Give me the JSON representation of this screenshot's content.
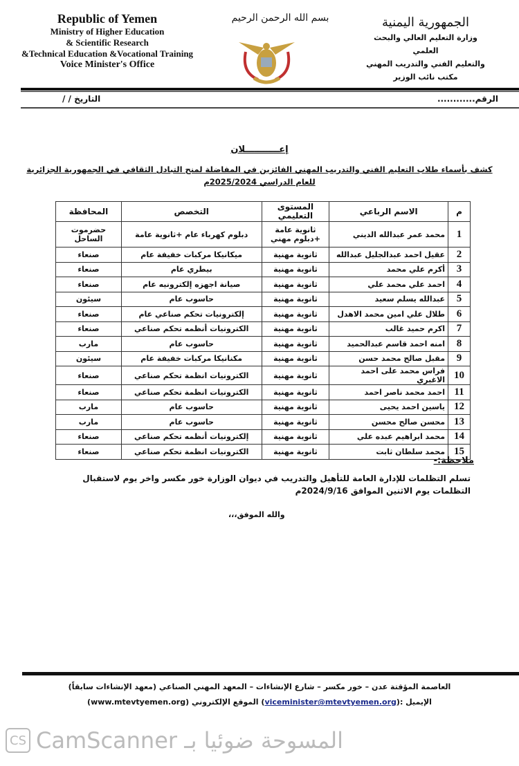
{
  "header": {
    "en": [
      "Republic of Yemen",
      "Ministry of Higher Education",
      "& Scientific Research",
      "&Technical Education &Vocational Training",
      "Voice Minister's Office"
    ],
    "ar": [
      "الجمهورية اليمنية",
      "وزارة التعليم العالي والبحث العلمي",
      "والتعليم الفني والتدريب المهني",
      "مكتب نائب الوزير"
    ],
    "basmala": "بسم الله الرحمن الرحيم",
    "number_label": "الرقم............",
    "date_label": "التاريخ   /   /"
  },
  "announcement": {
    "title": "إعـــــــــــلان",
    "subtitle": "كشف بأسماء طلاب التعليم الفني والتدريب المهني الفائزين في المفاضلة لمنح التبادل الثقافي في الجمهورية الجزائرية",
    "year": "للعام الدراسي 2025/2024م"
  },
  "table": {
    "headers": [
      "م",
      "الاسم الرباعي",
      "المستوى التعليمي",
      "التخصص",
      "المحافظة"
    ],
    "rows": [
      [
        "1",
        "محمد عمر عبدالله الديني",
        "ثانوية عامة +دبلوم مهني",
        "دبلوم كهرباء عام +ثانوية عامة",
        "حضرموت الساحل"
      ],
      [
        "2",
        "عقيل احمد عبدالجليل عبدالله",
        "ثانوية مهنية",
        "ميكانيكا مركبات خفيفة عام",
        "صنعاء"
      ],
      [
        "3",
        "أكرم علي محمد",
        "ثانوية مهنية",
        "بيطري عام",
        "صنعاء"
      ],
      [
        "4",
        "احمد علي محمد علي",
        "ثانوية مهنية",
        "صيانة اجهزه إلكترونيه عام",
        "صنعاء"
      ],
      [
        "5",
        "عبدالله يسلم سعيد",
        "ثانوية مهنية",
        "حاسوب عام",
        "سيئون"
      ],
      [
        "6",
        "طلال علي امين محمد الاهدل",
        "ثانوية مهنية",
        "إلكترونيات تحكم صناعي عام",
        "صنعاء"
      ],
      [
        "7",
        "اكرم حميد غالب",
        "ثانوية مهنية",
        "الكترونيات أنظمه تحكم صناعي",
        "صنعاء"
      ],
      [
        "8",
        "امنه احمد قاسم عبدالحميد",
        "ثانوية مهنية",
        "حاسوب عام",
        "مارب"
      ],
      [
        "9",
        "مقبل صالح محمد حسن",
        "ثانوية مهنية",
        "مكنانيكا مركبات خفيفة عام",
        "سيئون"
      ],
      [
        "10",
        "فراس محمد على احمد الاغبري",
        "ثانوية مهنية",
        "الكترونيات انظمة تحكم صناعي",
        "صنعاء"
      ],
      [
        "11",
        "احمد محمد ناصر احمد",
        "ثانوية مهنية",
        "الكترونيات انظمة تحكم صناعي",
        "صنعاء"
      ],
      [
        "12",
        "ياسين احمد يحيى",
        "ثانوية مهنية",
        "حاسوب عام",
        "مارب"
      ],
      [
        "13",
        "محسن صالح محسن",
        "ثانوية مهنية",
        "حاسوب عام",
        "مارب"
      ],
      [
        "14",
        "محمد ابراهيم عبده علي",
        "ثانوية مهنية",
        "إلكترونيات أنظمه تحكم صناعي",
        "صنعاء"
      ],
      [
        "15",
        "محمد سلطان ثابت",
        "ثانوية مهنية",
        "الكترونيات انظمة تحكم صناعي",
        "صنعاء"
      ]
    ]
  },
  "note": {
    "label": "ملاحظة:-",
    "line1": "تسلم التظلمات للإدارة العامة للتأهيل والتدريب في ديوان الوزارة خور مكسر واخر يوم لاستقبال",
    "line2": "التظلمات يوم الاثنين الموافق 2024/9/16م",
    "closing": "والله الموفق،،،"
  },
  "footer": {
    "address": "العاصمة المؤقتة عدن – خور مكسر – شارع الإنشاءات – المعهد المهني الصناعي (معهد الإنشاءات سابقاً)",
    "email_label": "الإيميل :(",
    "email": "viceminister@mtevtyemen.org",
    "website_label": ") الموقع الإلكتروني ",
    "website": "(www.mtevtyemen.org)"
  },
  "watermark": {
    "logo": "CS",
    "text": "CamScanner المسوحة ضوئيا بـ"
  }
}
